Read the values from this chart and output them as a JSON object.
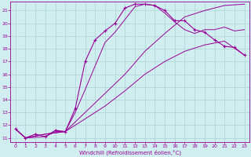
{
  "background_color": "#d0eef0",
  "grid_color": "#b0d8da",
  "line_color": "#990099",
  "xlim": [
    -0.5,
    23.5
  ],
  "ylim": [
    10.7,
    21.7
  ],
  "xlabel": "Windchill (Refroidissement éolien,°C)",
  "xticks": [
    0,
    1,
    2,
    3,
    4,
    5,
    6,
    7,
    8,
    9,
    10,
    11,
    12,
    13,
    14,
    15,
    16,
    17,
    18,
    19,
    20,
    21,
    22,
    23
  ],
  "yticks": [
    11,
    12,
    13,
    14,
    15,
    16,
    17,
    18,
    19,
    20,
    21
  ],
  "curves": [
    {
      "x": [
        0,
        1,
        2,
        3,
        4,
        5,
        6,
        7,
        8,
        9,
        10,
        11,
        12,
        13,
        14,
        15,
        16,
        17,
        18,
        19,
        20,
        21,
        22,
        23
      ],
      "y": [
        11.7,
        11.0,
        11.3,
        11.1,
        11.6,
        11.5,
        13.3,
        17.0,
        18.7,
        19.4,
        20.0,
        21.2,
        21.5,
        21.5,
        21.4,
        21.0,
        20.2,
        20.2,
        19.5,
        19.3,
        18.7,
        18.2,
        18.1,
        17.5
      ],
      "marker": true
    },
    {
      "x": [
        0,
        1,
        3,
        4,
        5,
        6,
        7,
        9,
        10,
        11,
        12,
        13,
        14,
        15,
        16,
        17,
        18,
        19,
        20,
        21,
        22,
        23
      ],
      "y": [
        11.7,
        11.0,
        11.1,
        11.5,
        11.5,
        13.0,
        14.8,
        18.5,
        19.3,
        20.3,
        21.3,
        21.5,
        21.4,
        20.8,
        20.1,
        19.5,
        19.2,
        19.5,
        19.5,
        19.7,
        19.4,
        19.5
      ],
      "marker": false
    },
    {
      "x": [
        0,
        1,
        3,
        5,
        7,
        9,
        11,
        13,
        15,
        17,
        19,
        21,
        23
      ],
      "y": [
        11.7,
        11.0,
        11.3,
        11.5,
        13.0,
        14.5,
        16.0,
        17.8,
        19.2,
        20.5,
        21.0,
        21.4,
        21.5
      ],
      "marker": false
    },
    {
      "x": [
        0,
        1,
        3,
        5,
        7,
        9,
        11,
        13,
        15,
        17,
        19,
        21,
        23
      ],
      "y": [
        11.7,
        11.0,
        11.3,
        11.5,
        12.5,
        13.5,
        14.7,
        16.0,
        17.0,
        17.8,
        18.3,
        18.6,
        17.5
      ],
      "marker": false
    }
  ]
}
